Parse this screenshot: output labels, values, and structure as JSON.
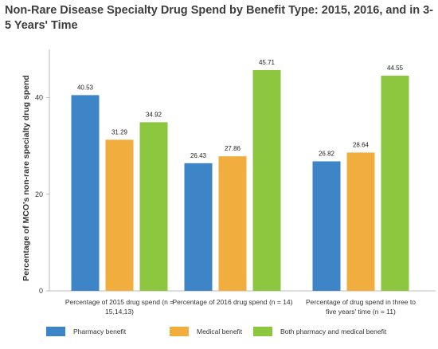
{
  "title": "Non-Rare Disease Specialty Drug Spend by Benefit Type: 2015, 2016, and in 3-5 Years' Time",
  "chart_data": {
    "type": "bar",
    "title": "Non-Rare Disease Specialty Drug Spend by Benefit Type: 2015, 2016, and in 3-5 Years' Time",
    "ylabel": "Percentage of MCO's non-rare specialty drug spend",
    "xlabel": "",
    "ylim": [
      0,
      50
    ],
    "yticks": [
      0,
      20,
      40
    ],
    "grid": false,
    "legend_position": "bottom",
    "categories": [
      [
        "Percentage of 2015 drug spend (n =",
        "15,14,13)"
      ],
      [
        "Percentage of 2016 drug spend (n = 14)"
      ],
      [
        "Percentage of drug spend in three to",
        "five years' time (n = 11)"
      ]
    ],
    "series": [
      {
        "name": "Pharmacy benefit",
        "color": "#3d85c6",
        "values": [
          40.53,
          26.43,
          26.82
        ],
        "labels": [
          "40.53",
          "26.43",
          "26.82"
        ]
      },
      {
        "name": "Medical benefit",
        "color": "#f1ad3d",
        "values": [
          31.29,
          27.86,
          28.64
        ],
        "labels": [
          "31.29",
          "27.86",
          "28.64"
        ]
      },
      {
        "name": "Both pharmacy and medical benefit",
        "color": "#8dc63f",
        "values": [
          34.92,
          45.71,
          44.55
        ],
        "labels": [
          "34.92",
          "45.71",
          "44.55"
        ]
      }
    ]
  }
}
